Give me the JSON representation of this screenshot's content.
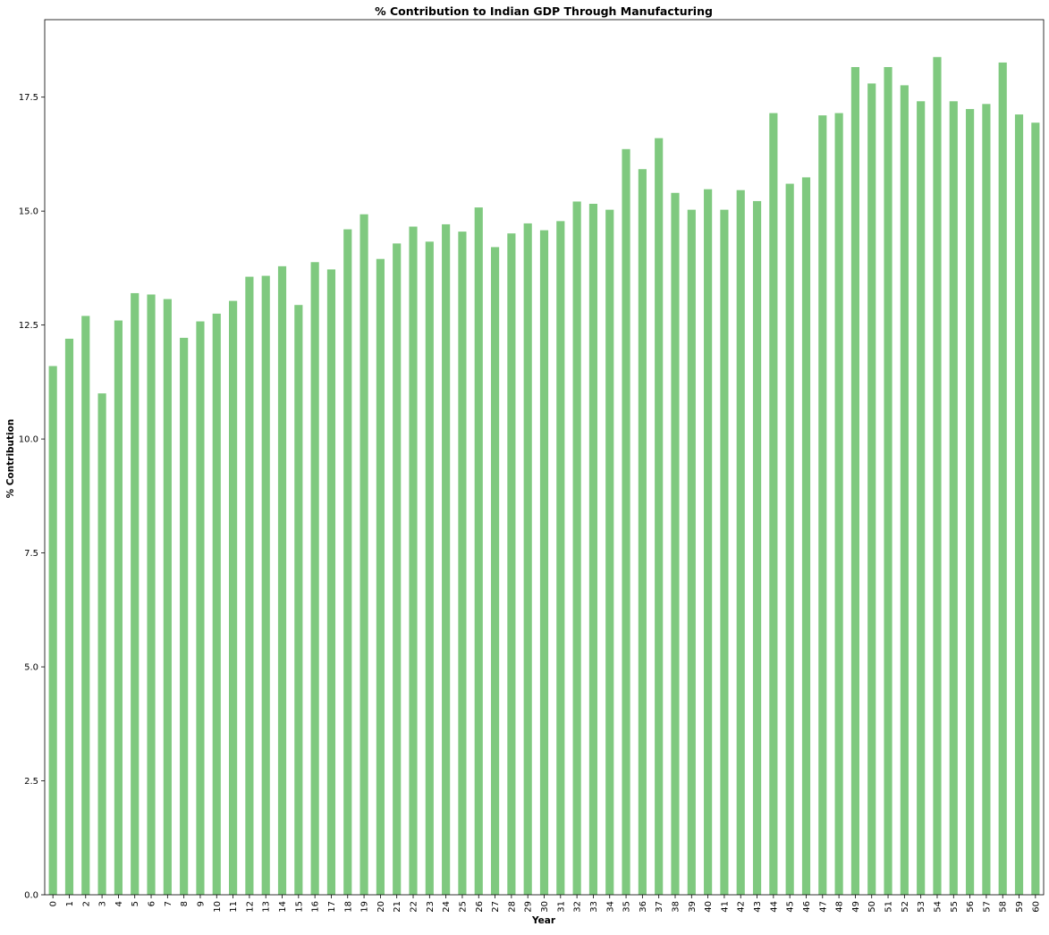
{
  "chart_data": {
    "type": "bar",
    "title": "% Contribution to Indian GDP Through Manufacturing",
    "xlabel": "Year",
    "ylabel": "% Contribution",
    "ylim": [
      0,
      19.2
    ],
    "yticks": [
      "0.0",
      "2.5",
      "5.0",
      "7.5",
      "10.0",
      "12.5",
      "15.0",
      "17.5"
    ],
    "grid": false,
    "legend": "none",
    "bar_color": "#7fc97f",
    "categories": [
      "0",
      "1",
      "2",
      "3",
      "4",
      "5",
      "6",
      "7",
      "8",
      "9",
      "10",
      "11",
      "12",
      "13",
      "14",
      "15",
      "16",
      "17",
      "18",
      "19",
      "20",
      "21",
      "22",
      "23",
      "24",
      "25",
      "26",
      "27",
      "28",
      "29",
      "30",
      "31",
      "32",
      "33",
      "34",
      "35",
      "36",
      "37",
      "38",
      "39",
      "40",
      "41",
      "42",
      "43",
      "44",
      "45",
      "46",
      "47",
      "48",
      "49",
      "50",
      "51",
      "52",
      "53",
      "54",
      "55",
      "56",
      "57",
      "58",
      "59",
      "60"
    ],
    "values": [
      11.6,
      12.2,
      12.7,
      11.0,
      12.6,
      13.2,
      13.17,
      13.07,
      12.22,
      12.58,
      12.75,
      13.03,
      13.56,
      13.58,
      13.79,
      12.94,
      13.88,
      13.72,
      14.6,
      14.93,
      13.95,
      14.29,
      14.66,
      14.33,
      14.71,
      14.55,
      15.08,
      14.21,
      14.51,
      14.73,
      14.58,
      14.78,
      15.21,
      15.16,
      15.03,
      16.36,
      15.92,
      16.6,
      15.4,
      15.03,
      15.48,
      15.03,
      15.46,
      15.22,
      17.15,
      15.6,
      15.74,
      17.1,
      17.15,
      18.16,
      17.8,
      18.16,
      17.76,
      17.41,
      18.38,
      17.41,
      17.24,
      17.35,
      18.26,
      17.12,
      16.94
    ]
  }
}
